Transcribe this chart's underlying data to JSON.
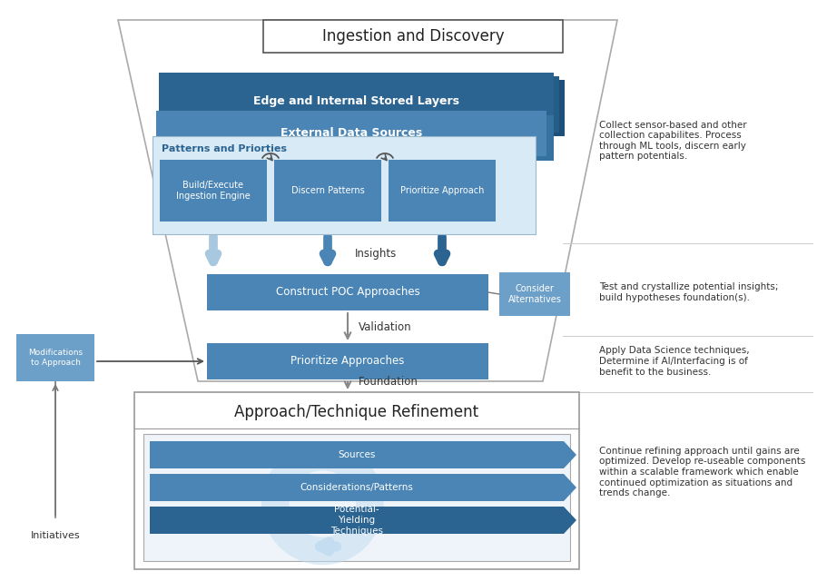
{
  "bg_color": "none",
  "title": "Ingestion and Discovery",
  "dark_blue": "#2b6391",
  "mid_blue": "#4a85b5",
  "light_blue": "#6da0c8",
  "very_light_blue": "#a8c8e0",
  "pale_blue": "#c5ddf0",
  "pale_blue2": "#d8eaf6",
  "text_dark": "#333333",
  "text_white": "#ffffff",
  "funnel_edge": "#aaaaaa",
  "right_annotations": [
    "Collect sensor-based and other\ncollection capabilites. Process\nthrough ML tools, discern early\npattern potentials.",
    "Test and crystallize potential insights;\nbuild hypotheses foundation(s).",
    "Apply Data Science techniques,\nDetermine if AI/Interfacing is of\nbenefit to the business.",
    "Continue refining approach until gains are\noptimized. Develop re-useable components\nwithin a scalable framework which enable\ncontinued optimization as situations and\ntrends change."
  ],
  "boxes": {
    "edge_layers": "Edge and Internal Stored Layers",
    "external_sources": "External Data Sources",
    "patterns": "Patterns and Priorties",
    "build_execute": "Build/Execute\nIngestion Engine",
    "discern": "Discern Patterns",
    "prioritize": "Prioritize Approach",
    "construct_poc": "Construct POC Approaches",
    "consider_alt": "Consider\nAlternatives",
    "prioritize_approaches": "Prioritize Approaches",
    "refinement": "Approach/Technique Refinement",
    "sources": "Sources",
    "considerations": "Considerations/Patterns",
    "potential": "Potential-\nYielding\nTechniques",
    "modifications": "Modifications\nto Approach",
    "initiatives": "Initiatives"
  },
  "labels": {
    "insights": "Insights",
    "validation": "Validation",
    "foundation": "Foundation"
  }
}
